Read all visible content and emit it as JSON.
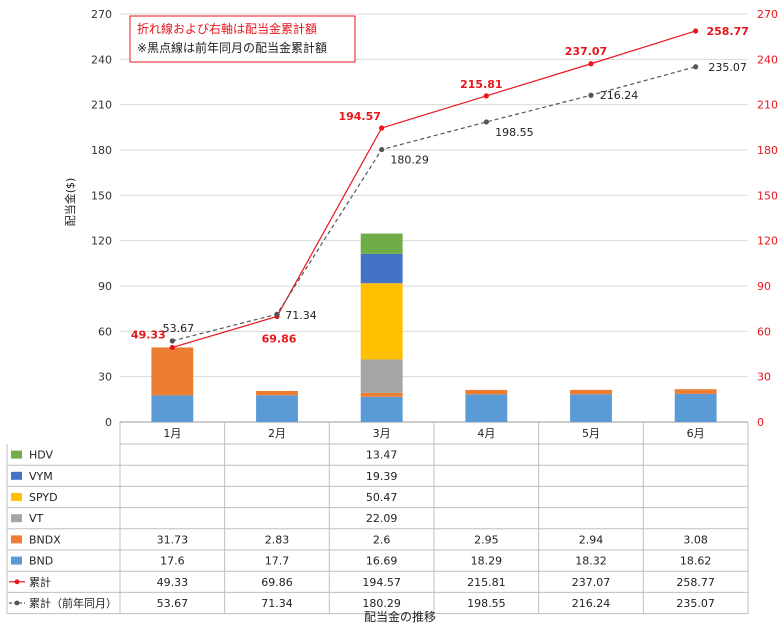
{
  "chart_data": {
    "type": "bar",
    "stacked": true,
    "categories": [
      "1月",
      "2月",
      "3月",
      "4月",
      "5月",
      "6月"
    ],
    "series": [
      {
        "name": "BND",
        "color": "#5b9bd5",
        "values": [
          17.6,
          17.7,
          16.69,
          18.29,
          18.32,
          18.62
        ]
      },
      {
        "name": "BNDX",
        "color": "#ed7d31",
        "values": [
          31.73,
          2.83,
          2.6,
          2.95,
          2.94,
          3.08
        ]
      },
      {
        "name": "VT",
        "color": "#a5a5a5",
        "values": [
          null,
          null,
          22.09,
          null,
          null,
          null
        ]
      },
      {
        "name": "SPYD",
        "color": "#ffc000",
        "values": [
          null,
          null,
          50.47,
          null,
          null,
          null
        ]
      },
      {
        "name": "VYM",
        "color": "#4472c4",
        "values": [
          null,
          null,
          19.39,
          null,
          null,
          null
        ]
      },
      {
        "name": "HDV",
        "color": "#70ad47",
        "values": [
          null,
          null,
          13.47,
          null,
          null,
          null
        ]
      }
    ],
    "lines": [
      {
        "name": "累計",
        "color": "#e8161b",
        "style": "solid",
        "axis": "right",
        "values": [
          49.33,
          69.86,
          194.57,
          215.81,
          237.07,
          258.77
        ]
      },
      {
        "name": "累計（前年同月）",
        "color": "#555555",
        "style": "dashed",
        "axis": "left",
        "values": [
          53.67,
          71.34,
          180.29,
          198.55,
          216.24,
          235.07
        ]
      }
    ],
    "ylabel": "配当金($)",
    "xlabel": "配当金の推移",
    "ylim": [
      0,
      270
    ],
    "y_ticks": [
      0,
      30,
      60,
      90,
      120,
      150,
      180,
      210,
      240,
      270
    ],
    "y2lim": [
      0,
      270
    ],
    "y2_ticks": [
      0,
      30,
      60,
      90,
      120,
      150,
      180,
      210,
      240,
      270
    ],
    "y2_color": "#e8161b",
    "annotation": {
      "line1": "折れ線および右軸は配当金累計額",
      "line2": "※黒点線は前年同月の配当金累計額"
    },
    "table_order": [
      "HDV",
      "VYM",
      "SPYD",
      "VT",
      "BNDX",
      "BND",
      "累計",
      "累計（前年同月）"
    ]
  }
}
